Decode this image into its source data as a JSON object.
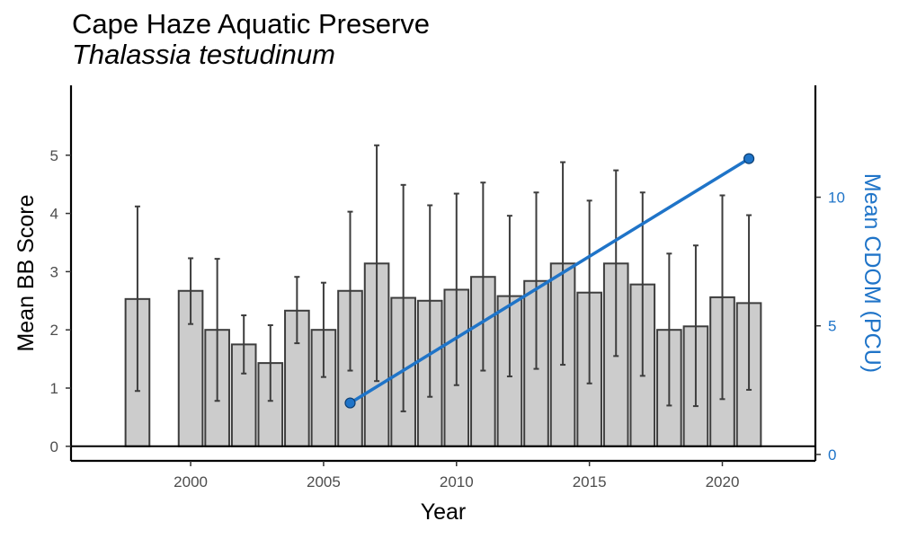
{
  "chart_data": {
    "type": "bar",
    "title": "Cape Haze Aquatic Preserve",
    "subtitle": "Thalassia testudinum",
    "xlabel": "Year",
    "ylabel": "Mean BB Score",
    "y2label": "Mean CDOM (PCU)",
    "xlim": [
      1995.5,
      2023.5
    ],
    "ylim": [
      -0.25,
      6.2
    ],
    "y2lim": [
      -0.25,
      14.35
    ],
    "xticks": [
      2000,
      2005,
      2010,
      2015,
      2020
    ],
    "yticks": [
      0,
      1,
      2,
      3,
      4,
      5
    ],
    "y2ticks": [
      0,
      5,
      10
    ],
    "grid": false,
    "bar_color": "#cccccc",
    "bar_edge_color": "#3d3d3d",
    "line_color": "#1f74c8",
    "series": [
      {
        "type": "bar",
        "x": [
          1998,
          2000,
          2001,
          2002,
          2003,
          2004,
          2005,
          2006,
          2007,
          2008,
          2009,
          2010,
          2011,
          2012,
          2013,
          2014,
          2015,
          2016,
          2017,
          2018,
          2019,
          2020,
          2021
        ],
        "values": [
          2.53,
          2.67,
          2.0,
          1.75,
          1.43,
          2.33,
          2.0,
          2.67,
          3.14,
          2.55,
          2.5,
          2.69,
          2.91,
          2.58,
          2.84,
          3.14,
          2.64,
          3.14,
          2.78,
          2.0,
          2.06,
          2.56,
          2.46
        ],
        "error_low": [
          0.95,
          2.1,
          0.78,
          1.25,
          0.78,
          1.77,
          1.19,
          1.3,
          1.12,
          0.6,
          0.85,
          1.05,
          1.3,
          1.2,
          1.33,
          1.4,
          1.08,
          1.55,
          1.21,
          0.7,
          0.69,
          0.81,
          0.97
        ],
        "error_high": [
          4.12,
          3.23,
          3.22,
          2.25,
          2.08,
          2.91,
          2.81,
          4.03,
          5.17,
          4.49,
          4.14,
          4.34,
          4.53,
          3.96,
          4.36,
          4.88,
          4.22,
          4.74,
          4.36,
          3.31,
          3.45,
          4.31,
          3.97
        ]
      },
      {
        "type": "line",
        "axis": "right",
        "x": [
          2006,
          2021
        ],
        "values": [
          2.0,
          11.5
        ]
      }
    ]
  }
}
